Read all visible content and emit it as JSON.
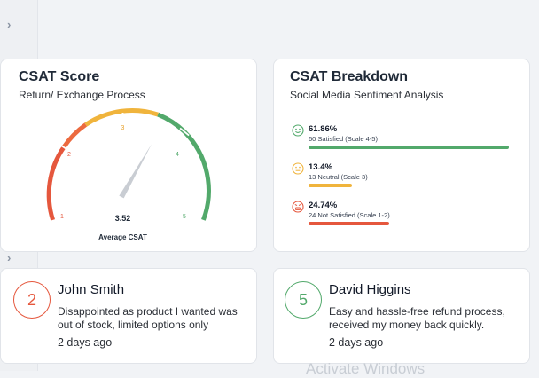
{
  "csat_score": {
    "title": "CSAT Score",
    "subtitle": "Return/ Exchange Process",
    "value": "3.52",
    "value_label": "Average CSAT",
    "scale_labels": [
      "1",
      "2",
      "3",
      "4",
      "5"
    ],
    "needle_value": 3.52,
    "scale_min": 1,
    "scale_max": 5,
    "colors": {
      "low": "#e5573d",
      "mid": "#f0b43c",
      "high": "#52a96b"
    }
  },
  "csat_breakdown": {
    "title": "CSAT Breakdown",
    "subtitle": "Social Media Sentiment Analysis",
    "items": [
      {
        "icon": "happy-face-icon",
        "percent": "61.86%",
        "description": "60 Satisfied (Scale 4-5)",
        "fraction": 0.6186,
        "color": "#52a96b"
      },
      {
        "icon": "neutral-face-icon",
        "percent": "13.4%",
        "description": "13 Neutral (Scale 3)",
        "fraction": 0.134,
        "color": "#f0b43c"
      },
      {
        "icon": "angry-face-icon",
        "percent": "24.74%",
        "description": "24 Not Satisfied (Scale 1-2)",
        "fraction": 0.2474,
        "color": "#e5573d"
      }
    ]
  },
  "reviews": [
    {
      "rating": "2",
      "name": "John Smith",
      "text_lines": [
        "Disappointed as product I wanted was",
        "out of stock, limited options only"
      ],
      "time": "2 days ago",
      "color": "#e5573d"
    },
    {
      "rating": "5",
      "name": "David Higgins",
      "text_lines": [
        "Easy and hassle-free refund process,",
        "received my money back quickly."
      ],
      "time": "2 days ago",
      "color": "#52a96b"
    }
  ],
  "watermark": "Activate Windows"
}
